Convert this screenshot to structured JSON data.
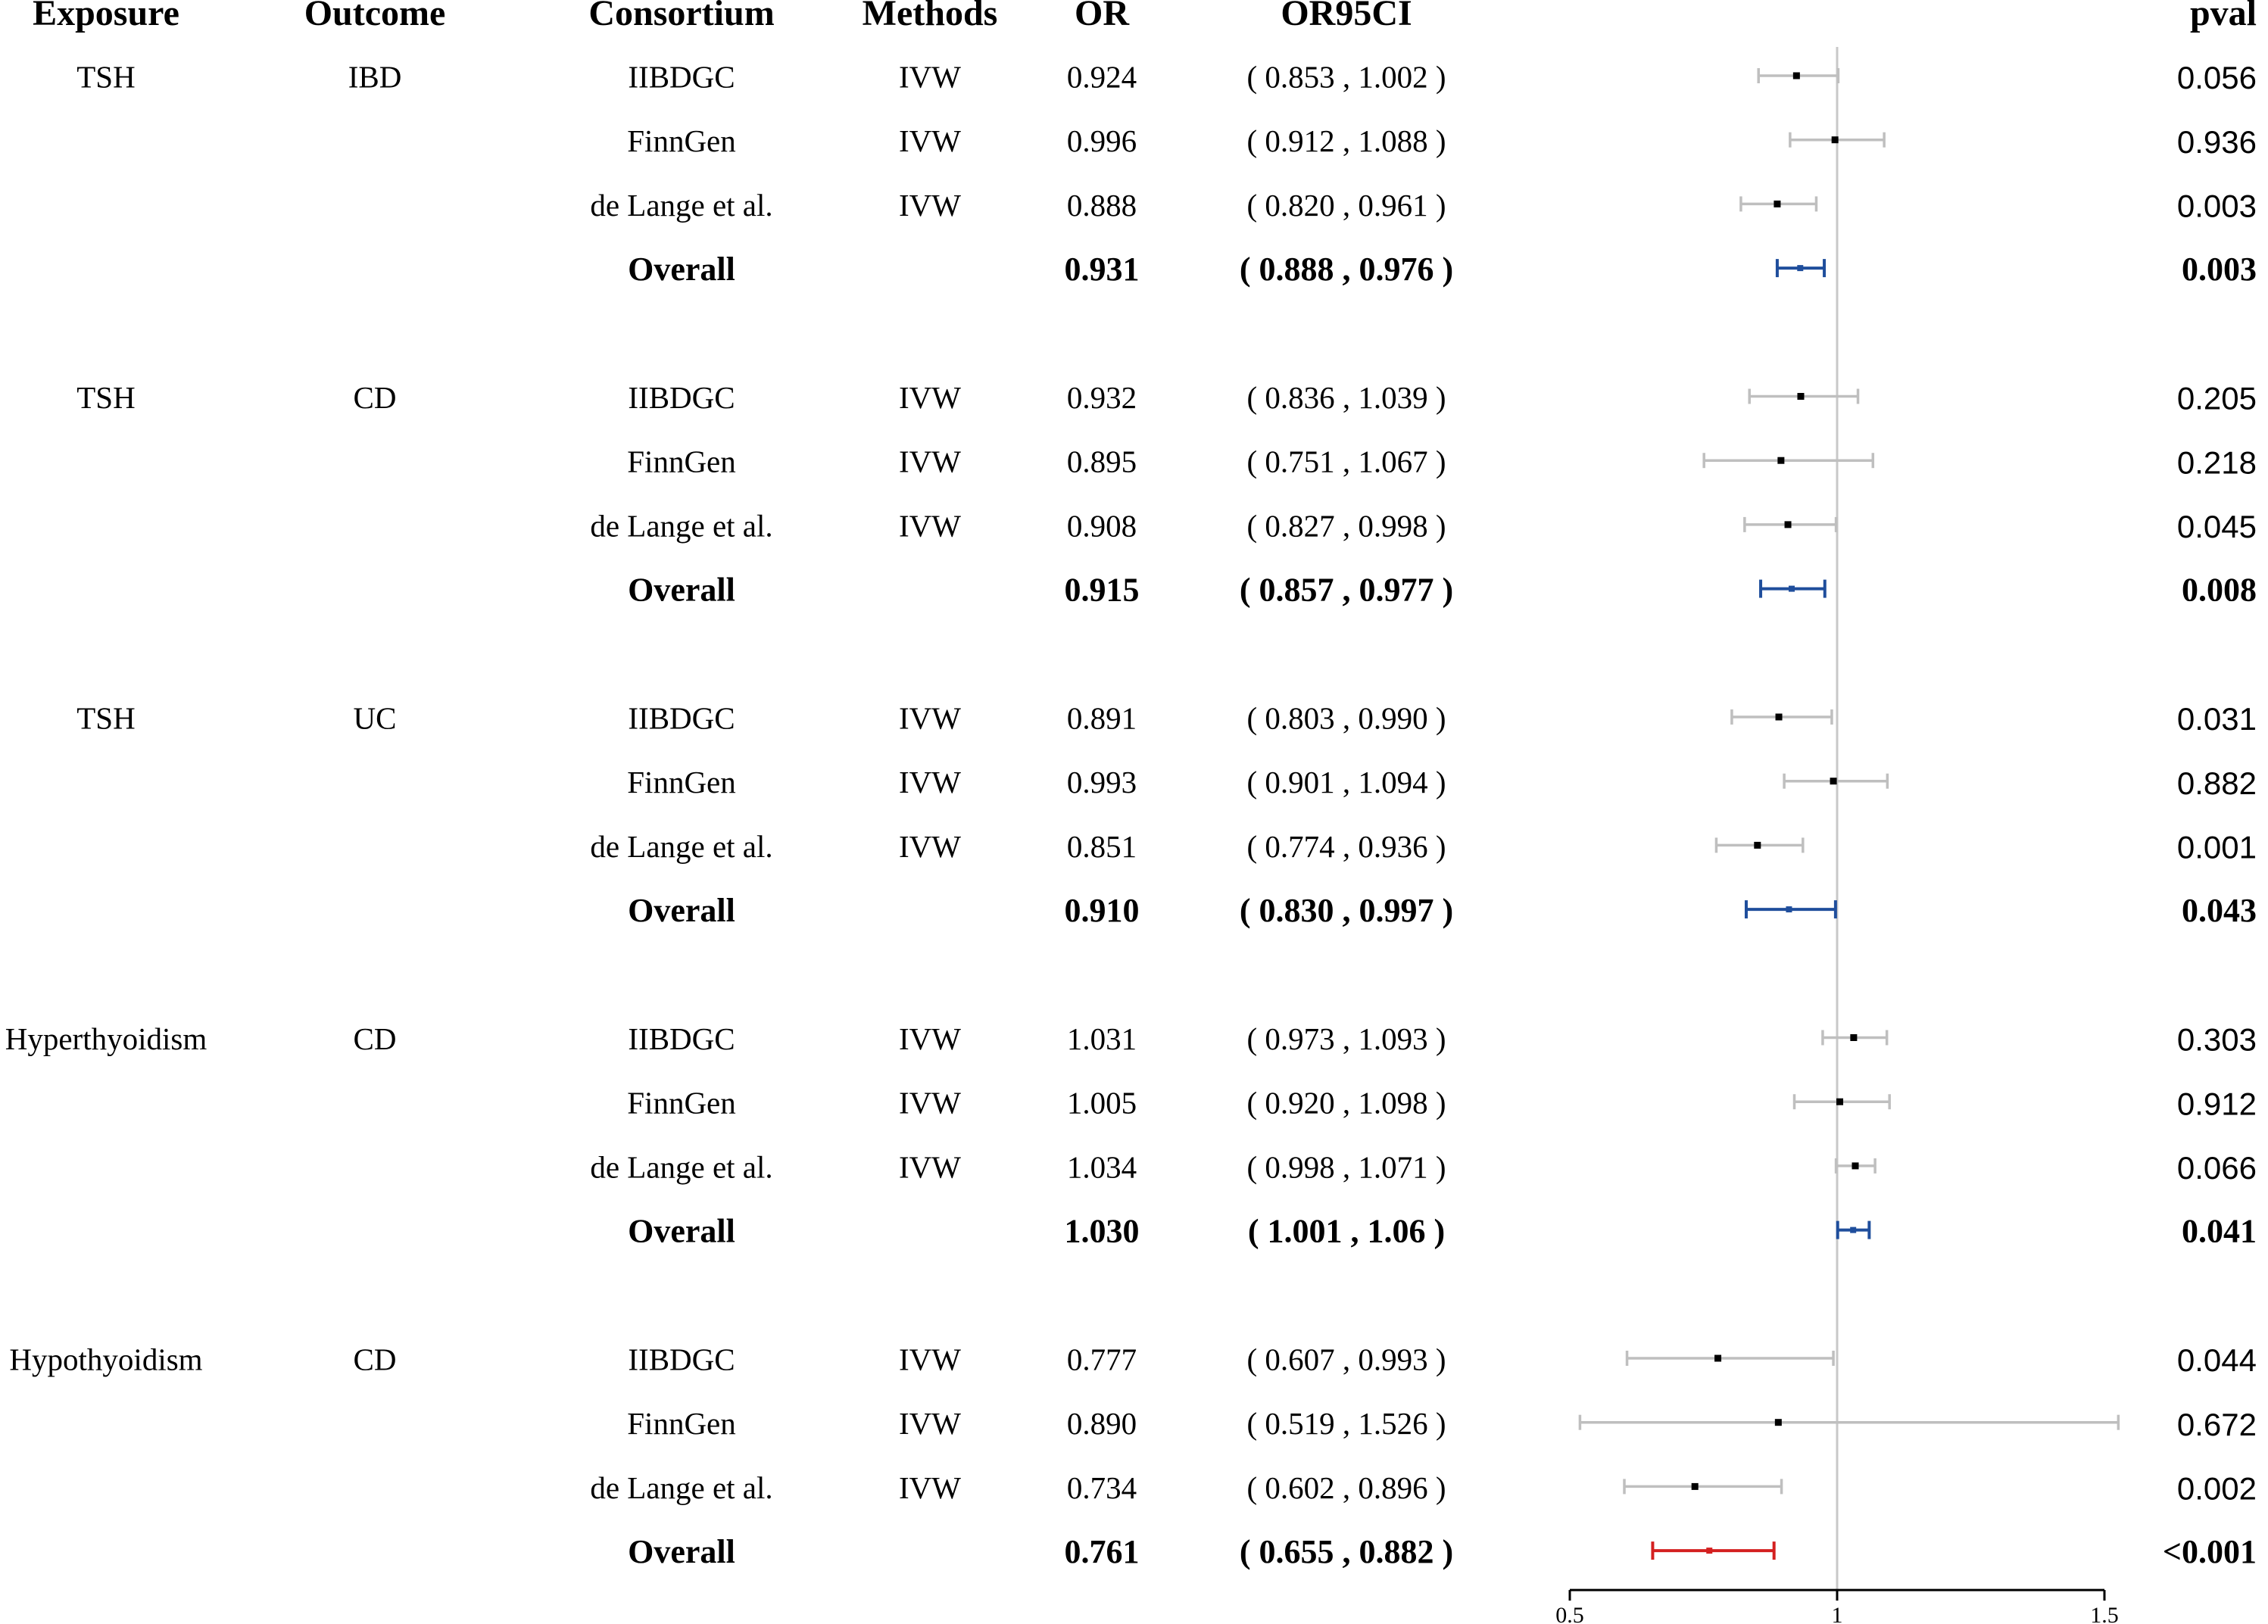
{
  "columns": {
    "exposure": "Exposure",
    "outcome": "Outcome",
    "consortium": "Consortium",
    "methods": "Methods",
    "or": "OR",
    "ci": "OR95CI",
    "pval": "pval"
  },
  "colors": {
    "study": "#000000",
    "study_ci": "#bfbfbf",
    "overall_blue": "#1f4e9c",
    "overall_red": "#d42020",
    "ref_line": "#c8c8c8",
    "axis": "#000000"
  },
  "chart_data": {
    "type": "forest",
    "xlim": [
      0.5,
      1.5
    ],
    "xticks": [
      0.5,
      1,
      1.5
    ],
    "xtick_labels": [
      "0.5",
      "1",
      "1.5"
    ],
    "reference_line": 1,
    "groups": [
      {
        "exposure": "TSH",
        "outcome": "IBD",
        "rows": [
          {
            "consortium": "IIBDGC",
            "method": "IVW",
            "or": 0.924,
            "lo": 0.853,
            "hi": 1.002,
            "or_text": "0.924",
            "ci_text": "( 0.853 , 1.002 )",
            "pval": "0.056"
          },
          {
            "consortium": "FinnGen",
            "method": "IVW",
            "or": 0.996,
            "lo": 0.912,
            "hi": 1.088,
            "or_text": "0.996",
            "ci_text": "( 0.912 , 1.088 )",
            "pval": "0.936"
          },
          {
            "consortium": "de Lange et al.",
            "method": "IVW",
            "or": 0.888,
            "lo": 0.82,
            "hi": 0.961,
            "or_text": "0.888",
            "ci_text": "( 0.820 , 0.961 )",
            "pval": "0.003"
          }
        ],
        "overall": {
          "label": "Overall",
          "or": 0.931,
          "lo": 0.888,
          "hi": 0.976,
          "or_text": "0.931",
          "ci_text": "( 0.888 , 0.976 )",
          "pval": "0.003",
          "color": "blue"
        }
      },
      {
        "exposure": "TSH",
        "outcome": "CD",
        "rows": [
          {
            "consortium": "IIBDGC",
            "method": "IVW",
            "or": 0.932,
            "lo": 0.836,
            "hi": 1.039,
            "or_text": "0.932",
            "ci_text": "( 0.836 , 1.039 )",
            "pval": "0.205"
          },
          {
            "consortium": "FinnGen",
            "method": "IVW",
            "or": 0.895,
            "lo": 0.751,
            "hi": 1.067,
            "or_text": "0.895",
            "ci_text": "( 0.751 , 1.067 )",
            "pval": "0.218"
          },
          {
            "consortium": "de Lange et al.",
            "method": "IVW",
            "or": 0.908,
            "lo": 0.827,
            "hi": 0.998,
            "or_text": "0.908",
            "ci_text": "( 0.827 , 0.998 )",
            "pval": "0.045"
          }
        ],
        "overall": {
          "label": "Overall",
          "or": 0.915,
          "lo": 0.857,
          "hi": 0.977,
          "or_text": "0.915",
          "ci_text": "( 0.857 , 0.977 )",
          "pval": "0.008",
          "color": "blue"
        }
      },
      {
        "exposure": "TSH",
        "outcome": "UC",
        "rows": [
          {
            "consortium": "IIBDGC",
            "method": "IVW",
            "or": 0.891,
            "lo": 0.803,
            "hi": 0.99,
            "or_text": "0.891",
            "ci_text": "( 0.803 , 0.990 )",
            "pval": "0.031"
          },
          {
            "consortium": "FinnGen",
            "method": "IVW",
            "or": 0.993,
            "lo": 0.901,
            "hi": 1.094,
            "or_text": "0.993",
            "ci_text": "( 0.901 , 1.094 )",
            "pval": "0.882"
          },
          {
            "consortium": "de Lange et al.",
            "method": "IVW",
            "or": 0.851,
            "lo": 0.774,
            "hi": 0.936,
            "or_text": "0.851",
            "ci_text": "( 0.774 , 0.936 )",
            "pval": "0.001"
          }
        ],
        "overall": {
          "label": "Overall",
          "or": 0.91,
          "lo": 0.83,
          "hi": 0.997,
          "or_text": "0.910",
          "ci_text": "( 0.830 , 0.997 )",
          "pval": "0.043",
          "color": "blue"
        }
      },
      {
        "exposure": "Hyperthyoidism",
        "outcome": "CD",
        "rows": [
          {
            "consortium": "IIBDGC",
            "method": "IVW",
            "or": 1.031,
            "lo": 0.973,
            "hi": 1.093,
            "or_text": "1.031",
            "ci_text": "( 0.973 , 1.093 )",
            "pval": "0.303"
          },
          {
            "consortium": "FinnGen",
            "method": "IVW",
            "or": 1.005,
            "lo": 0.92,
            "hi": 1.098,
            "or_text": "1.005",
            "ci_text": "( 0.920 , 1.098 )",
            "pval": "0.912"
          },
          {
            "consortium": "de Lange et al.",
            "method": "IVW",
            "or": 1.034,
            "lo": 0.998,
            "hi": 1.071,
            "or_text": "1.034",
            "ci_text": "( 0.998 , 1.071 )",
            "pval": "0.066"
          }
        ],
        "overall": {
          "label": "Overall",
          "or": 1.03,
          "lo": 1.001,
          "hi": 1.06,
          "or_text": "1.030",
          "ci_text": "( 1.001 , 1.06 )",
          "pval": "0.041",
          "color": "blue"
        }
      },
      {
        "exposure": "Hypothyoidism",
        "outcome": "CD",
        "rows": [
          {
            "consortium": "IIBDGC",
            "method": "IVW",
            "or": 0.777,
            "lo": 0.607,
            "hi": 0.993,
            "or_text": "0.777",
            "ci_text": "( 0.607 , 0.993 )",
            "pval": "0.044"
          },
          {
            "consortium": "FinnGen",
            "method": "IVW",
            "or": 0.89,
            "lo": 0.519,
            "hi": 1.526,
            "or_text": "0.890",
            "ci_text": "( 0.519 , 1.526 )",
            "pval": "0.672"
          },
          {
            "consortium": "de Lange et al.",
            "method": "IVW",
            "or": 0.734,
            "lo": 0.602,
            "hi": 0.896,
            "or_text": "0.734",
            "ci_text": "( 0.602 , 0.896 )",
            "pval": "0.002"
          }
        ],
        "overall": {
          "label": "Overall",
          "or": 0.761,
          "lo": 0.655,
          "hi": 0.882,
          "or_text": "0.761",
          "ci_text": "( 0.655 , 0.882 )",
          "pval": "<0.001",
          "color": "red"
        }
      }
    ]
  }
}
